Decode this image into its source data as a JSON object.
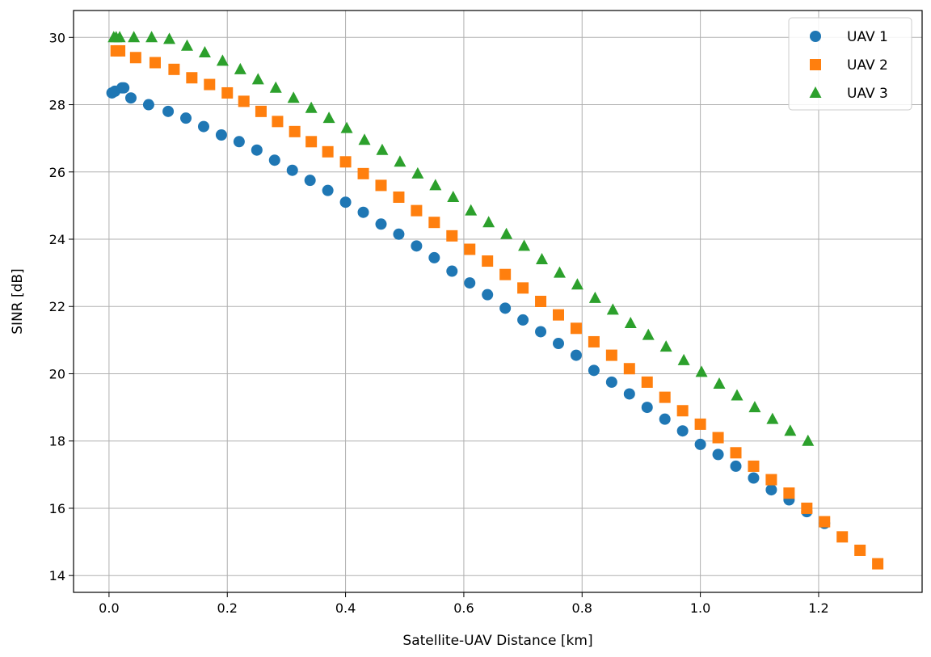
{
  "chart_data": {
    "type": "scatter",
    "title": "",
    "xlabel": "Satellite-UAV Distance [km]",
    "ylabel": "SINR [dB]",
    "xlim": [
      -0.06,
      1.375
    ],
    "ylim": [
      13.5,
      30.8
    ],
    "xticks": [
      0.0,
      0.2,
      0.4,
      0.6,
      0.8,
      1.0,
      1.2
    ],
    "xtick_labels": [
      "0.0",
      "0.2",
      "0.4",
      "0.6",
      "0.8",
      "1.0",
      "1.2"
    ],
    "yticks": [
      14,
      16,
      18,
      20,
      22,
      24,
      26,
      28,
      30
    ],
    "ytick_labels": [
      "14",
      "16",
      "18",
      "20",
      "22",
      "24",
      "26",
      "28",
      "30"
    ],
    "grid": true,
    "legend_position": "top-right",
    "series": [
      {
        "name": "UAV 1",
        "color": "#1f77b4",
        "marker": "circle",
        "x": [
          0.005,
          0.01,
          0.022,
          0.025,
          0.037,
          0.067,
          0.1,
          0.13,
          0.16,
          0.19,
          0.22,
          0.25,
          0.28,
          0.31,
          0.34,
          0.37,
          0.4,
          0.43,
          0.46,
          0.49,
          0.52,
          0.55,
          0.58,
          0.61,
          0.64,
          0.67,
          0.7,
          0.73,
          0.76,
          0.79,
          0.82,
          0.85,
          0.88,
          0.91,
          0.94,
          0.97,
          1.0,
          1.03,
          1.06,
          1.09,
          1.12,
          1.15,
          1.18,
          1.21
        ],
        "y": [
          28.35,
          28.4,
          28.5,
          28.5,
          28.2,
          28.0,
          27.8,
          27.6,
          27.35,
          27.1,
          26.9,
          26.65,
          26.35,
          26.05,
          25.75,
          25.45,
          25.1,
          24.8,
          24.45,
          24.15,
          23.8,
          23.45,
          23.05,
          22.7,
          22.35,
          21.95,
          21.6,
          21.25,
          20.9,
          20.55,
          20.1,
          19.75,
          19.4,
          19.0,
          18.65,
          18.3,
          17.9,
          17.6,
          17.25,
          16.9,
          16.55,
          16.25,
          15.9,
          15.55
        ]
      },
      {
        "name": "UAV 2",
        "color": "#ff7f0e",
        "marker": "square",
        "x": [
          0.012,
          0.018,
          0.045,
          0.078,
          0.11,
          0.14,
          0.17,
          0.2,
          0.228,
          0.257,
          0.285,
          0.314,
          0.342,
          0.37,
          0.4,
          0.43,
          0.46,
          0.49,
          0.52,
          0.55,
          0.58,
          0.61,
          0.64,
          0.67,
          0.7,
          0.73,
          0.76,
          0.79,
          0.82,
          0.85,
          0.88,
          0.91,
          0.94,
          0.97,
          1.0,
          1.03,
          1.06,
          1.09,
          1.12,
          1.15,
          1.18,
          1.21,
          1.24,
          1.27,
          1.3
        ],
        "y": [
          29.6,
          29.6,
          29.4,
          29.25,
          29.05,
          28.8,
          28.6,
          28.35,
          28.1,
          27.8,
          27.5,
          27.2,
          26.9,
          26.6,
          26.3,
          25.95,
          25.6,
          25.25,
          24.85,
          24.5,
          24.1,
          23.7,
          23.35,
          22.95,
          22.55,
          22.15,
          21.75,
          21.35,
          20.95,
          20.55,
          20.15,
          19.75,
          19.3,
          18.9,
          18.5,
          18.1,
          17.65,
          17.25,
          16.85,
          16.45,
          16.0,
          15.6,
          15.15,
          14.75,
          14.35
        ]
      },
      {
        "name": "UAV 3",
        "color": "#2ca02c",
        "marker": "triangle",
        "x": [
          0.008,
          0.012,
          0.018,
          0.042,
          0.072,
          0.102,
          0.132,
          0.162,
          0.192,
          0.222,
          0.252,
          0.282,
          0.312,
          0.342,
          0.372,
          0.402,
          0.432,
          0.462,
          0.492,
          0.522,
          0.552,
          0.582,
          0.612,
          0.642,
          0.672,
          0.702,
          0.732,
          0.762,
          0.792,
          0.822,
          0.852,
          0.882,
          0.912,
          0.942,
          0.972,
          1.002,
          1.032,
          1.062,
          1.092,
          1.122,
          1.152,
          1.182
        ],
        "y": [
          30.0,
          30.0,
          30.0,
          30.0,
          30.0,
          29.95,
          29.75,
          29.55,
          29.3,
          29.05,
          28.75,
          28.5,
          28.2,
          27.9,
          27.6,
          27.3,
          26.95,
          26.65,
          26.3,
          25.95,
          25.6,
          25.25,
          24.85,
          24.5,
          24.15,
          23.8,
          23.4,
          23.0,
          22.65,
          22.25,
          21.9,
          21.5,
          21.15,
          20.8,
          20.4,
          20.05,
          19.7,
          19.35,
          19.0,
          18.65,
          18.3,
          18.0
        ]
      }
    ]
  }
}
